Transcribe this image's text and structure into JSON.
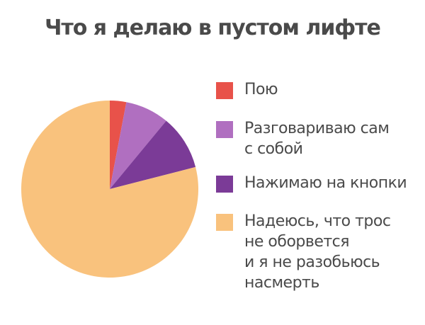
{
  "chart_data": {
    "type": "pie",
    "title": "Что я делаю в пустом лифте",
    "categories": [
      "Пою",
      "Разговариваю сам\nс собой",
      "Нажимаю на кнопки",
      "Надеюсь, что трос\nне оборвется\nи я не разобьюсь\nнасмерть"
    ],
    "values": [
      3,
      8,
      10,
      79
    ],
    "colors": [
      "#e8524a",
      "#b06fc0",
      "#7b3b97",
      "#f9c27d"
    ]
  }
}
